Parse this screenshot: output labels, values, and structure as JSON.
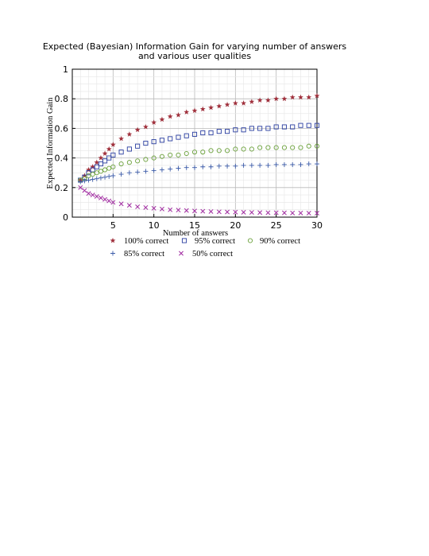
{
  "chart_data": {
    "type": "scatter",
    "title": "Expected (Bayesian) Information Gain for varying number of answers\nand various user qualities",
    "xlabel": "Number of answers",
    "ylabel": "Expected Information Gain",
    "xlim": [
      0,
      30
    ],
    "ylim": [
      0,
      1
    ],
    "x_ticks": [
      5,
      10,
      15,
      20,
      25,
      30
    ],
    "y_ticks": [
      0,
      0.2,
      0.4,
      0.6,
      0.8,
      1
    ],
    "grid": true,
    "legend_position": "below",
    "series": [
      {
        "name": "100% correct",
        "marker": "star",
        "color": "#a0303c",
        "x": [
          1,
          1.5,
          2,
          2.5,
          3,
          3.5,
          4,
          4.5,
          5,
          6,
          7,
          8,
          9,
          10,
          11,
          12,
          13,
          14,
          15,
          16,
          17,
          18,
          19,
          20,
          21,
          22,
          23,
          24,
          25,
          26,
          27,
          28,
          29,
          30
        ],
        "values": [
          0.25,
          0.28,
          0.32,
          0.34,
          0.37,
          0.4,
          0.43,
          0.46,
          0.49,
          0.53,
          0.56,
          0.59,
          0.61,
          0.64,
          0.66,
          0.68,
          0.69,
          0.71,
          0.72,
          0.73,
          0.74,
          0.75,
          0.76,
          0.77,
          0.77,
          0.78,
          0.79,
          0.79,
          0.8,
          0.8,
          0.81,
          0.81,
          0.81,
          0.82
        ]
      },
      {
        "name": "95% correct",
        "marker": "square",
        "color": "#2a3ea0",
        "x": [
          1,
          1.5,
          2,
          2.5,
          3,
          3.5,
          4,
          4.5,
          5,
          6,
          7,
          8,
          9,
          10,
          11,
          12,
          13,
          14,
          15,
          16,
          17,
          18,
          19,
          20,
          21,
          22,
          23,
          24,
          25,
          26,
          27,
          28,
          29,
          30
        ],
        "values": [
          0.25,
          0.27,
          0.3,
          0.32,
          0.34,
          0.36,
          0.38,
          0.4,
          0.42,
          0.44,
          0.46,
          0.48,
          0.5,
          0.51,
          0.52,
          0.53,
          0.54,
          0.55,
          0.56,
          0.57,
          0.57,
          0.58,
          0.58,
          0.59,
          0.59,
          0.6,
          0.6,
          0.6,
          0.61,
          0.61,
          0.61,
          0.62,
          0.62,
          0.62
        ]
      },
      {
        "name": "90% correct",
        "marker": "circle",
        "color": "#6aa03a",
        "x": [
          1,
          1.5,
          2,
          2.5,
          3,
          3.5,
          4,
          4.5,
          5,
          6,
          7,
          8,
          9,
          10,
          11,
          12,
          13,
          14,
          15,
          16,
          17,
          18,
          19,
          20,
          21,
          22,
          23,
          24,
          25,
          26,
          27,
          28,
          29,
          30
        ],
        "values": [
          0.25,
          0.26,
          0.28,
          0.29,
          0.3,
          0.31,
          0.32,
          0.33,
          0.34,
          0.36,
          0.37,
          0.38,
          0.39,
          0.4,
          0.41,
          0.42,
          0.42,
          0.43,
          0.44,
          0.44,
          0.45,
          0.45,
          0.45,
          0.46,
          0.46,
          0.46,
          0.47,
          0.47,
          0.47,
          0.47,
          0.47,
          0.47,
          0.48,
          0.48
        ]
      },
      {
        "name": "85% correct",
        "marker": "plus",
        "color": "#3a5aa8",
        "x": [
          1,
          1.5,
          2,
          2.5,
          3,
          3.5,
          4,
          4.5,
          5,
          6,
          7,
          8,
          9,
          10,
          11,
          12,
          13,
          14,
          15,
          16,
          17,
          18,
          19,
          20,
          21,
          22,
          23,
          24,
          25,
          26,
          27,
          28,
          29,
          30
        ],
        "values": [
          0.24,
          0.245,
          0.25,
          0.255,
          0.26,
          0.265,
          0.27,
          0.275,
          0.28,
          0.29,
          0.3,
          0.305,
          0.31,
          0.315,
          0.32,
          0.325,
          0.33,
          0.335,
          0.335,
          0.34,
          0.34,
          0.345,
          0.345,
          0.345,
          0.35,
          0.35,
          0.35,
          0.35,
          0.355,
          0.355,
          0.355,
          0.355,
          0.36,
          0.36
        ]
      },
      {
        "name": "50% correct",
        "marker": "x",
        "color": "#a02aa0",
        "x": [
          1,
          1.5,
          2,
          2.5,
          3,
          3.5,
          4,
          4.5,
          5,
          6,
          7,
          8,
          9,
          10,
          11,
          12,
          13,
          14,
          15,
          16,
          17,
          18,
          19,
          20,
          21,
          22,
          23,
          24,
          25,
          26,
          27,
          28,
          29,
          30
        ],
        "values": [
          0.2,
          0.18,
          0.16,
          0.15,
          0.14,
          0.13,
          0.12,
          0.11,
          0.1,
          0.09,
          0.08,
          0.07,
          0.065,
          0.06,
          0.055,
          0.05,
          0.048,
          0.045,
          0.042,
          0.04,
          0.038,
          0.036,
          0.035,
          0.034,
          0.033,
          0.032,
          0.031,
          0.03,
          0.03,
          0.029,
          0.028,
          0.028,
          0.027,
          0.027
        ]
      }
    ]
  }
}
